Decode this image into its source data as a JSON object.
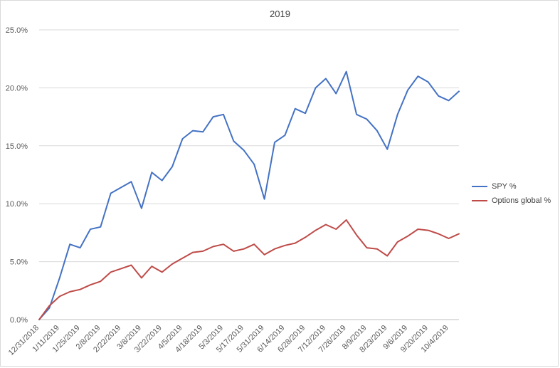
{
  "chart_data": {
    "type": "line",
    "title": "2019",
    "xlabel": "",
    "ylabel": "",
    "ylim": [
      0,
      0.25
    ],
    "ytick_labels": [
      "0.0%",
      "5.0%",
      "10.0%",
      "15.0%",
      "20.0%",
      "25.0%"
    ],
    "grid": true,
    "legend_position": "right",
    "categories": [
      "12/31/2018",
      "1/4/2019",
      "1/11/2019",
      "1/18/2019",
      "1/25/2019",
      "2/1/2019",
      "2/8/2019",
      "2/15/2019",
      "2/22/2019",
      "3/1/2019",
      "3/8/2019",
      "3/15/2019",
      "3/22/2019",
      "3/29/2019",
      "4/5/2019",
      "4/12/2019",
      "4/18/2019",
      "4/26/2019",
      "5/3/2019",
      "5/10/2019",
      "5/17/2019",
      "5/24/2019",
      "5/31/2019",
      "6/7/2019",
      "6/14/2019",
      "6/21/2019",
      "6/28/2019",
      "7/5/2019",
      "7/12/2019",
      "7/19/2019",
      "7/26/2019",
      "8/2/2019",
      "8/9/2019",
      "8/16/2019",
      "8/23/2019",
      "8/30/2019",
      "9/6/2019",
      "9/13/2019",
      "9/20/2019",
      "9/27/2019",
      "10/4/2019",
      "10/11/2019"
    ],
    "tick_labels": [
      "12/31/2018",
      "1/11/2019",
      "1/25/2019",
      "2/8/2019",
      "2/22/2019",
      "3/8/2019",
      "3/22/2019",
      "4/5/2019",
      "4/18/2019",
      "5/3/2019",
      "5/17/2019",
      "5/31/2019",
      "6/14/2019",
      "6/28/2019",
      "7/12/2019",
      "7/26/2019",
      "8/9/2019",
      "8/23/2019",
      "9/6/2019",
      "9/20/2019",
      "10/4/2019"
    ],
    "series": [
      {
        "name": "SPY %",
        "color": "#4472c4",
        "values": [
          0.0,
          0.01,
          0.036,
          0.065,
          0.062,
          0.078,
          0.08,
          0.109,
          0.114,
          0.119,
          0.096,
          0.127,
          0.12,
          0.132,
          0.156,
          0.163,
          0.162,
          0.175,
          0.177,
          0.154,
          0.146,
          0.134,
          0.104,
          0.153,
          0.159,
          0.182,
          0.178,
          0.2,
          0.208,
          0.195,
          0.214,
          0.177,
          0.173,
          0.163,
          0.147,
          0.177,
          0.198,
          0.21,
          0.205,
          0.193,
          0.189,
          0.197
        ]
      },
      {
        "name": "Options global %",
        "color": "#be4b48",
        "values": [
          0.0,
          0.012,
          0.02,
          0.024,
          0.026,
          0.03,
          0.033,
          0.041,
          0.044,
          0.047,
          0.036,
          0.046,
          0.041,
          0.048,
          0.053,
          0.058,
          0.059,
          0.063,
          0.065,
          0.059,
          0.061,
          0.065,
          0.056,
          0.061,
          0.064,
          0.066,
          0.071,
          0.077,
          0.082,
          0.078,
          0.086,
          0.073,
          0.062,
          0.061,
          0.055,
          0.067,
          0.072,
          0.078,
          0.077,
          0.074,
          0.07,
          0.074
        ]
      }
    ]
  }
}
